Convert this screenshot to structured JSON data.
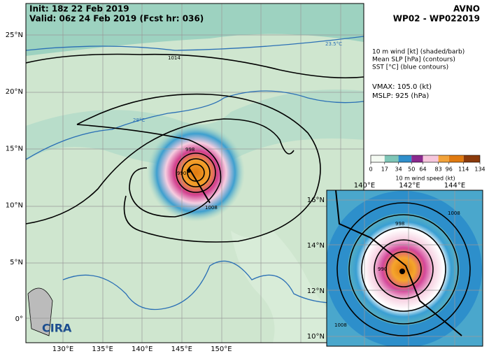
{
  "header": {
    "init": "Init:  18z 22 Feb 2019",
    "valid": "Valid: 06z 24 Feb 2019 (Fcst hr: 036)",
    "model": "AVNO",
    "storm": "WP02 - WP022019"
  },
  "legend_text": {
    "lines": [
      "10 m wind [kt] (shaded/barb)",
      "Mean SLP [hPa] (contours)",
      "SST [°C] (blue contours)"
    ],
    "vmax": "VMAX: 105.0 (kt)",
    "mslp": "MSLP:  925 (hPa)"
  },
  "colorbar": {
    "ticks": [
      0,
      17,
      34,
      50,
      64,
      83,
      96,
      114,
      134
    ],
    "label": "10 m wind speed (kt)"
  },
  "main_map": {
    "lat_labels": [
      "25°N",
      "20°N",
      "15°N",
      "10°N",
      "5°N",
      "0°"
    ],
    "lon_labels": [
      "130°E",
      "135°E",
      "140°E",
      "145°E",
      "150°E"
    ],
    "contour_labels": [
      "1014",
      "23.5°C",
      "28°C",
      "1008",
      "990",
      "998"
    ],
    "logo": "CIRA"
  },
  "inset_map": {
    "lat_labels": [
      "16°N",
      "14°N",
      "12°N",
      "10°N"
    ],
    "lon_labels": [
      "140°E",
      "142°E",
      "144°E"
    ],
    "contour_labels": [
      "1008",
      "998",
      "990",
      "1008"
    ]
  }
}
